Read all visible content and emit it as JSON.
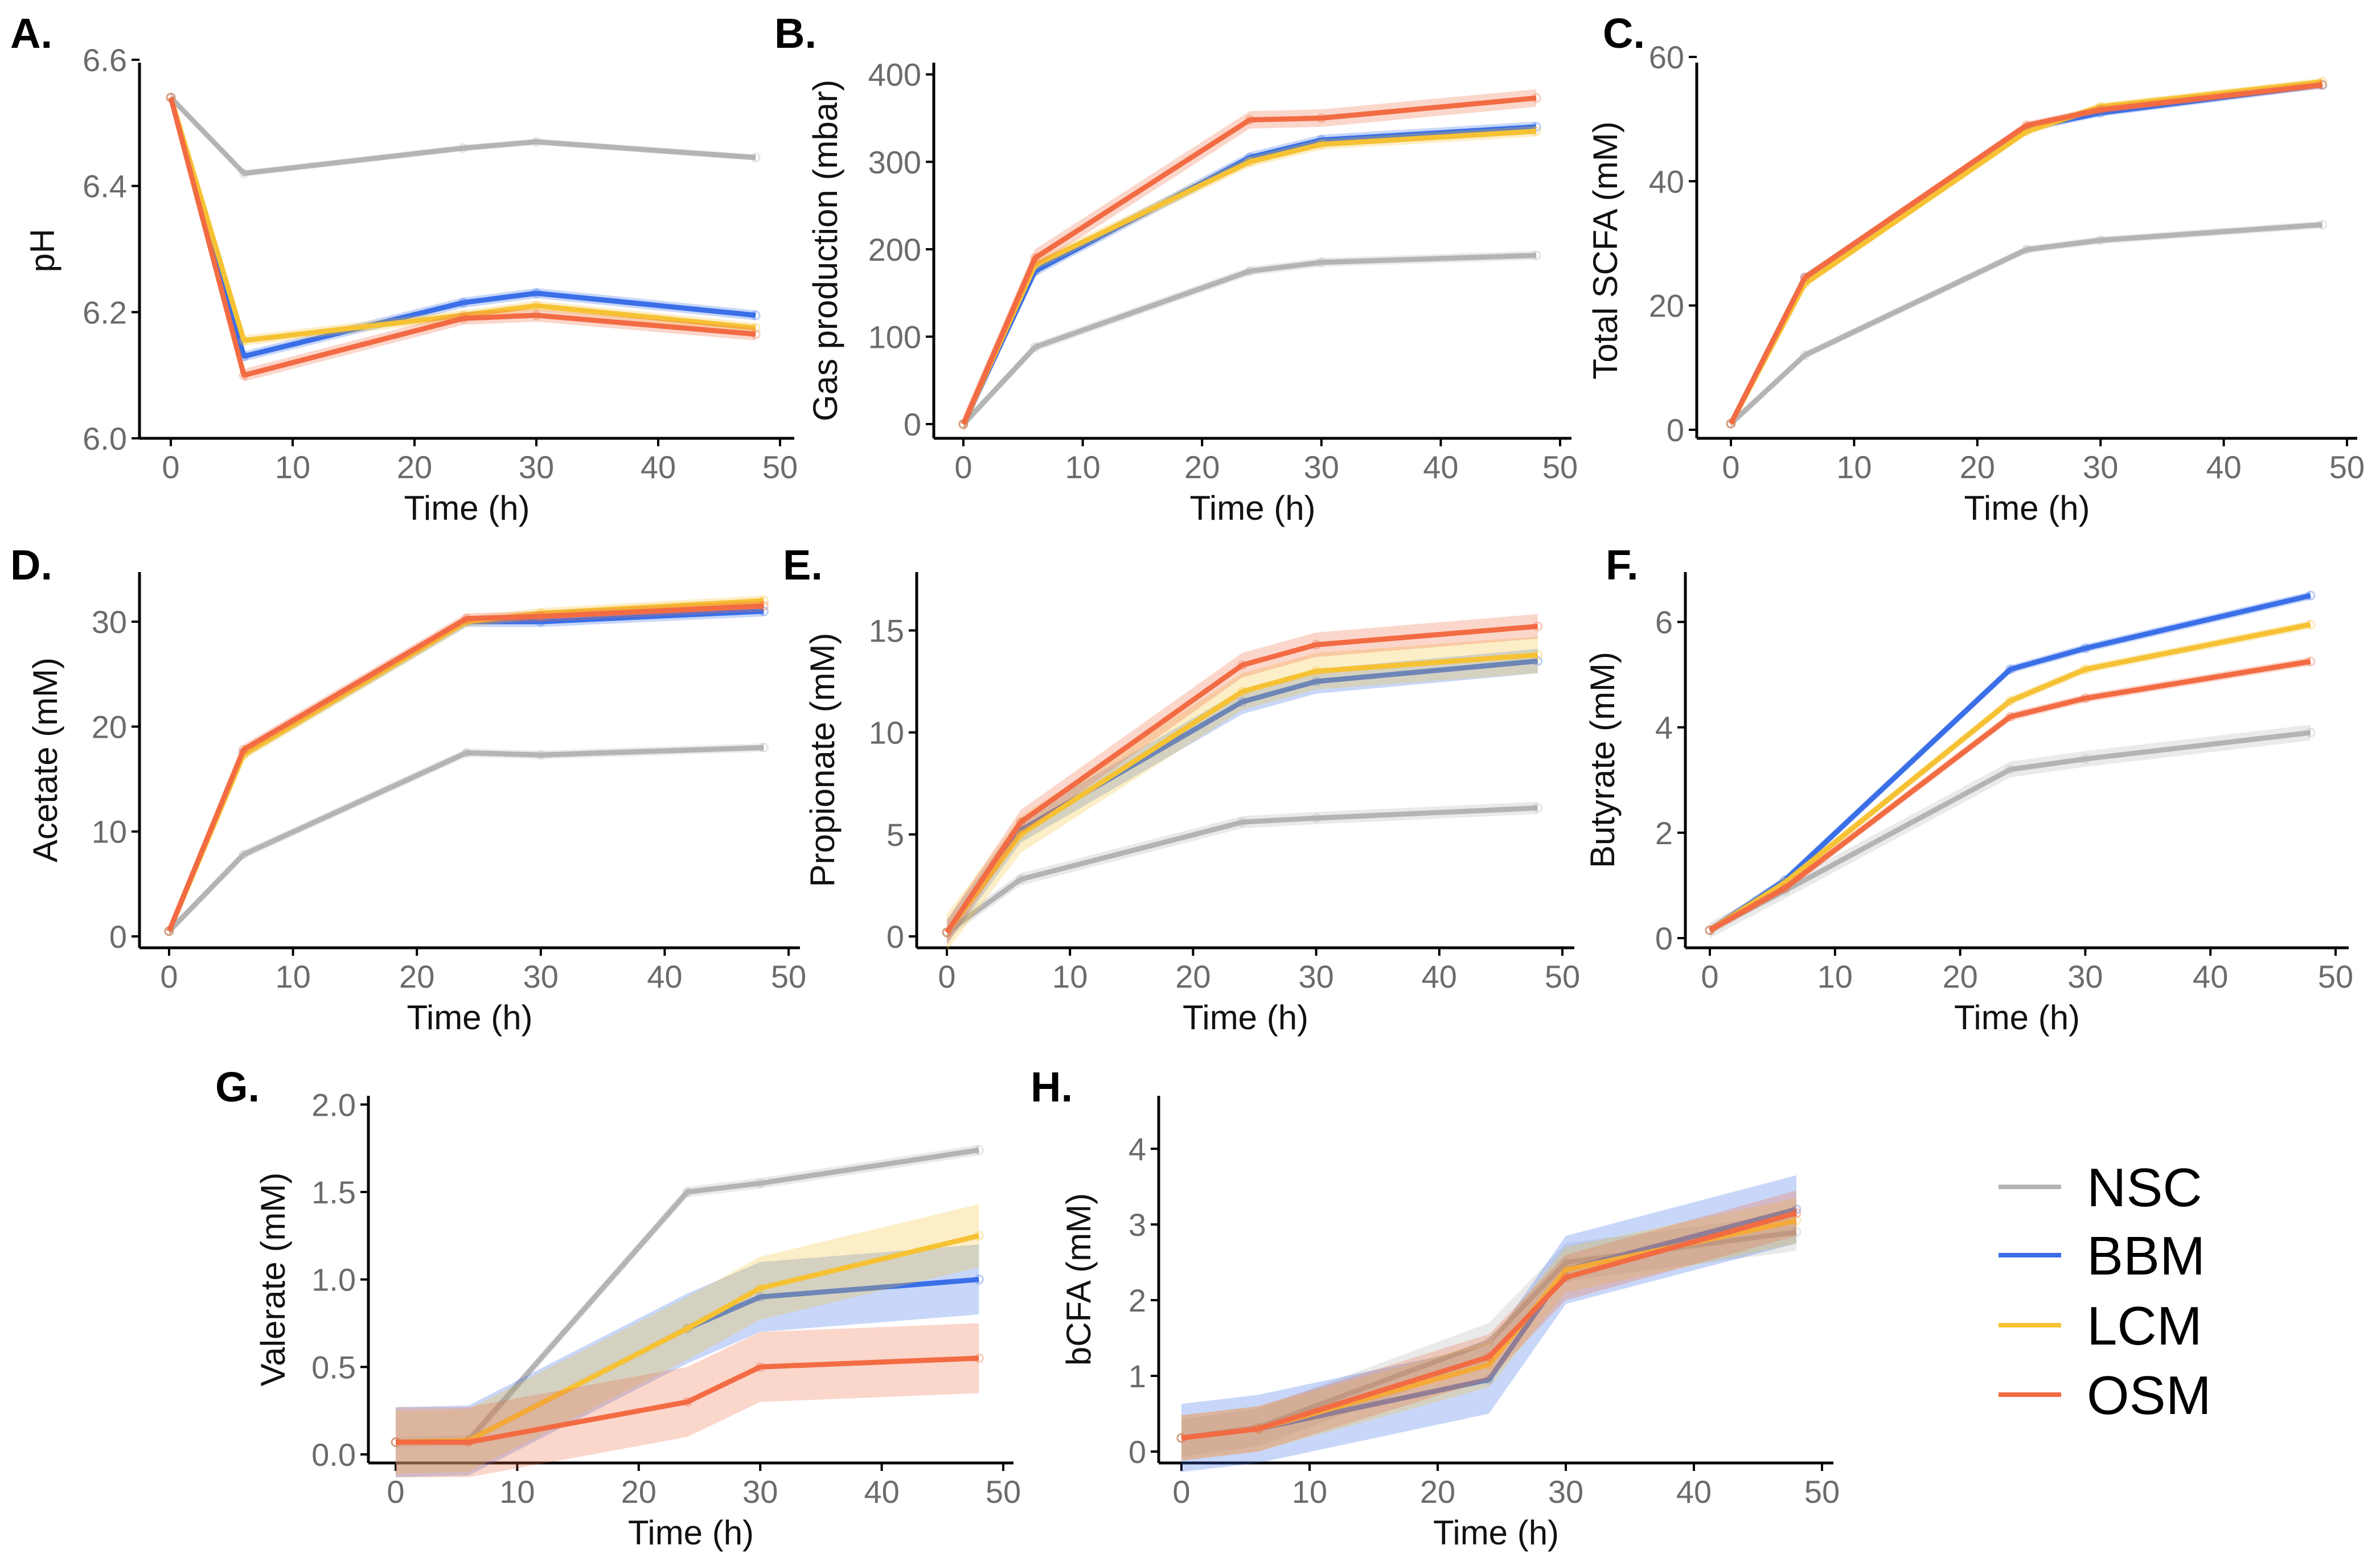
{
  "colors": {
    "NSC": "#b4b4b4",
    "BBM": "#3a6fe8",
    "LCM": "#f6c234",
    "OSM": "#f26b43"
  },
  "legend": [
    "NSC",
    "BBM",
    "LCM",
    "OSM"
  ],
  "chart_data": [
    {
      "type": "line",
      "panel": "A.",
      "title": "",
      "xlabel": "Time (h)",
      "ylabel": "pH",
      "xlim": [
        0,
        50
      ],
      "ylim": [
        6.0,
        6.6
      ],
      "xticks": [
        0,
        10,
        20,
        30,
        40,
        50
      ],
      "yticks": [
        6.0,
        6.2,
        6.4,
        6.6
      ],
      "ytick_labels": [
        "6.0",
        "6.2",
        "6.4",
        "6.6"
      ],
      "x": [
        0,
        6,
        24,
        30,
        48
      ],
      "series": [
        {
          "name": "NSC",
          "values": [
            6.54,
            6.42,
            6.46,
            6.47,
            6.445
          ],
          "band": 0.005
        },
        {
          "name": "BBM",
          "values": [
            6.54,
            6.13,
            6.215,
            6.23,
            6.195
          ],
          "band": 0.008
        },
        {
          "name": "LCM",
          "values": [
            6.54,
            6.155,
            6.195,
            6.21,
            6.175
          ],
          "band": 0.008
        },
        {
          "name": "OSM",
          "values": [
            6.54,
            6.1,
            6.19,
            6.195,
            6.165
          ],
          "band": 0.01
        }
      ]
    },
    {
      "type": "line",
      "panel": "B.",
      "title": "",
      "xlabel": "Time (h)",
      "ylabel": "Gas production (mbar)",
      "xlim": [
        0,
        50
      ],
      "ylim": [
        0,
        420
      ],
      "xticks": [
        0,
        10,
        20,
        30,
        40,
        50
      ],
      "yticks": [
        0,
        100,
        200,
        300,
        400
      ],
      "ytick_labels": [
        "0",
        "100",
        "200",
        "300",
        "400"
      ],
      "x": [
        0,
        6,
        24,
        30,
        48
      ],
      "series": [
        {
          "name": "NSC",
          "values": [
            0,
            88,
            175,
            185,
            193
          ],
          "band": 5
        },
        {
          "name": "BBM",
          "values": [
            0,
            175,
            305,
            325,
            340
          ],
          "band": 6
        },
        {
          "name": "LCM",
          "values": [
            0,
            182,
            300,
            320,
            335
          ],
          "band": 6
        },
        {
          "name": "OSM",
          "values": [
            0,
            190,
            348,
            350,
            373
          ],
          "band": 10
        }
      ]
    },
    {
      "type": "line",
      "panel": "C.",
      "title": "",
      "xlabel": "Time (h)",
      "ylabel": "Total SCFA (mM)",
      "xlim": [
        0,
        50
      ],
      "ylim": [
        0,
        60
      ],
      "xticks": [
        0,
        10,
        20,
        30,
        40,
        50
      ],
      "yticks": [
        0,
        20,
        40,
        60
      ],
      "ytick_labels": [
        "0",
        "20",
        "40",
        "60"
      ],
      "x": [
        0,
        6,
        24,
        30,
        48
      ],
      "series": [
        {
          "name": "NSC",
          "values": [
            1,
            12,
            29,
            30.5,
            33
          ],
          "band": 0.6
        },
        {
          "name": "BBM",
          "values": [
            1,
            24.5,
            48.5,
            51,
            55.5
          ],
          "band": 0.6
        },
        {
          "name": "LCM",
          "values": [
            1,
            23.5,
            48,
            52,
            56
          ],
          "band": 0.6
        },
        {
          "name": "OSM",
          "values": [
            1,
            24.5,
            49,
            51.5,
            55.5
          ],
          "band": 0.6
        }
      ]
    },
    {
      "type": "line",
      "panel": "D.",
      "title": "",
      "xlabel": "Time (h)",
      "ylabel": "Acetate (mM)",
      "xlim": [
        0,
        50
      ],
      "ylim": [
        0,
        35
      ],
      "xticks": [
        0,
        10,
        20,
        30,
        40,
        50
      ],
      "yticks": [
        0,
        10,
        20,
        30
      ],
      "ytick_labels": [
        "0",
        "10",
        "20",
        "30"
      ],
      "x": [
        0,
        6,
        24,
        30,
        48
      ],
      "series": [
        {
          "name": "NSC",
          "values": [
            0.5,
            7.8,
            17.5,
            17.3,
            18
          ],
          "band": 0.4
        },
        {
          "name": "BBM",
          "values": [
            0.5,
            17.5,
            30,
            30,
            31
          ],
          "band": 0.5
        },
        {
          "name": "LCM",
          "values": [
            0.5,
            17.3,
            30,
            30.8,
            32
          ],
          "band": 0.5
        },
        {
          "name": "OSM",
          "values": [
            0.5,
            17.8,
            30.3,
            30.5,
            31.5
          ],
          "band": 0.5
        }
      ]
    },
    {
      "type": "line",
      "panel": "E.",
      "title": "",
      "xlabel": "Time (h)",
      "ylabel": "Propionate (mM)",
      "xlim": [
        0,
        50
      ],
      "ylim": [
        0,
        18
      ],
      "xticks": [
        0,
        10,
        20,
        30,
        40,
        50
      ],
      "yticks": [
        0,
        5,
        10,
        15
      ],
      "ytick_labels": [
        "0",
        "5",
        "10",
        "15"
      ],
      "x": [
        0,
        6,
        24,
        30,
        48
      ],
      "series": [
        {
          "name": "NSC",
          "values": [
            0.2,
            2.8,
            5.6,
            5.8,
            6.3
          ],
          "band": 0.3
        },
        {
          "name": "BBM",
          "values": [
            0.2,
            5.2,
            11.5,
            12.5,
            13.5
          ],
          "band": 0.6
        },
        {
          "name": "LCM",
          "values": [
            0.2,
            5.0,
            12.0,
            13.0,
            13.8
          ],
          "band": 0.9
        },
        {
          "name": "OSM",
          "values": [
            0.2,
            5.6,
            13.3,
            14.3,
            15.2
          ],
          "band": 0.6
        }
      ]
    },
    {
      "type": "line",
      "panel": "F.",
      "title": "",
      "xlabel": "Time (h)",
      "ylabel": "Butyrate (mM)",
      "xlim": [
        0,
        50
      ],
      "ylim": [
        0,
        7
      ],
      "xticks": [
        0,
        10,
        20,
        30,
        40,
        50
      ],
      "yticks": [
        0,
        2,
        4,
        6
      ],
      "ytick_labels": [
        "0",
        "2",
        "4",
        "6"
      ],
      "x": [
        0,
        6,
        24,
        30,
        48
      ],
      "series": [
        {
          "name": "NSC",
          "values": [
            0.15,
            0.9,
            3.2,
            3.4,
            3.9
          ],
          "band": 0.15
        },
        {
          "name": "BBM",
          "values": [
            0.15,
            1.1,
            5.1,
            5.5,
            6.5
          ],
          "band": 0.08
        },
        {
          "name": "LCM",
          "values": [
            0.15,
            1.05,
            4.5,
            5.1,
            5.95
          ],
          "band": 0.08
        },
        {
          "name": "OSM",
          "values": [
            0.15,
            0.95,
            4.2,
            4.55,
            5.25
          ],
          "band": 0.08
        }
      ]
    },
    {
      "type": "line",
      "panel": "G.",
      "title": "",
      "xlabel": "Time (h)",
      "ylabel": "Valerate (mM)",
      "xlim": [
        0,
        50
      ],
      "ylim": [
        0,
        2.05
      ],
      "xticks": [
        0,
        10,
        20,
        30,
        40,
        50
      ],
      "yticks": [
        0,
        0.5,
        1.0,
        1.5,
        2.0
      ],
      "ytick_labels": [
        "0.0",
        "0.5",
        "1.0",
        "1.5",
        "2.0"
      ],
      "x": [
        0,
        6,
        24,
        30,
        48
      ],
      "series": [
        {
          "name": "NSC",
          "values": [
            0.07,
            0.08,
            1.5,
            1.55,
            1.74
          ],
          "band": 0.03
        },
        {
          "name": "BBM",
          "values": [
            0.07,
            0.08,
            0.72,
            0.9,
            1.0
          ],
          "band": 0.2
        },
        {
          "name": "LCM",
          "values": [
            0.07,
            0.08,
            0.72,
            0.95,
            1.25
          ],
          "band": 0.18
        },
        {
          "name": "OSM",
          "values": [
            0.07,
            0.07,
            0.3,
            0.5,
            0.55
          ],
          "band": 0.2
        }
      ]
    },
    {
      "type": "line",
      "panel": "H.",
      "title": "",
      "xlabel": "Time (h)",
      "ylabel": "bCFA (mM)",
      "xlim": [
        0,
        50
      ],
      "ylim": [
        0,
        4.7
      ],
      "xticks": [
        0,
        10,
        20,
        30,
        40,
        50
      ],
      "yticks": [
        0,
        1,
        2,
        3,
        4
      ],
      "ytick_labels": [
        "0",
        "1",
        "2",
        "3",
        "4"
      ],
      "x": [
        0,
        6,
        24,
        30,
        48
      ],
      "series": [
        {
          "name": "NSC",
          "values": [
            0.18,
            0.32,
            1.45,
            2.5,
            2.9
          ],
          "band": 0.25
        },
        {
          "name": "BBM",
          "values": [
            0.18,
            0.3,
            0.95,
            2.4,
            3.2
          ],
          "band": 0.45
        },
        {
          "name": "LCM",
          "values": [
            0.18,
            0.3,
            1.15,
            2.4,
            3.05
          ],
          "band": 0.3
        },
        {
          "name": "OSM",
          "values": [
            0.18,
            0.3,
            1.25,
            2.3,
            3.15
          ],
          "band": 0.3
        }
      ]
    }
  ]
}
